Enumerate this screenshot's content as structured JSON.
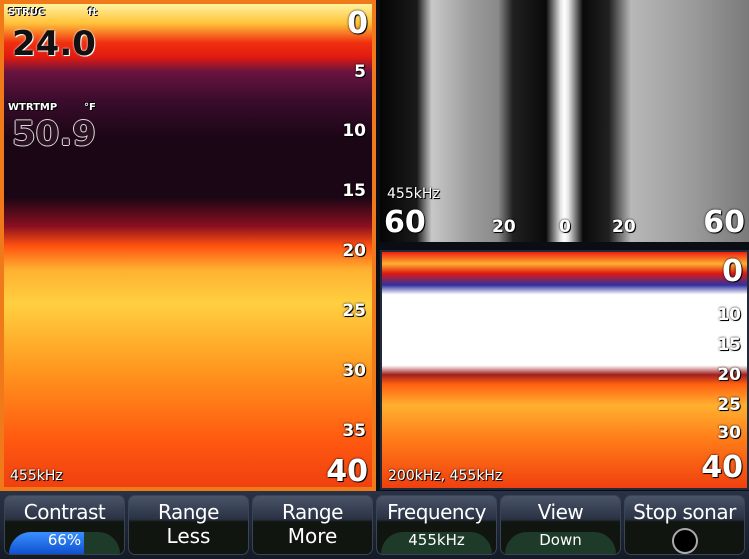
{
  "left_panel": {
    "struc_label": "STRUC",
    "struc_unit": "ft",
    "struc_value": "24.0",
    "temp_label": "WTRTMP",
    "temp_unit": "°F",
    "temp_value": "50.9",
    "depth_scale": [
      "0",
      "5",
      "10",
      "15",
      "20",
      "25",
      "30",
      "35",
      "40"
    ],
    "frequency": "455kHz"
  },
  "sidescan_panel": {
    "frequency": "455kHz",
    "range_left": "60",
    "mark_left": "20",
    "center": "0",
    "mark_right": "20",
    "range_right": "60"
  },
  "downscan_panel": {
    "depth_scale": [
      "0",
      "10",
      "15",
      "20",
      "25",
      "30",
      "40"
    ],
    "frequency": "200kHz, 455kHz"
  },
  "toolbar": {
    "contrast": {
      "label": "Contrast",
      "value": "66%",
      "level": 0.66
    },
    "range_less": {
      "label": "Range",
      "sub": "Less"
    },
    "range_more": {
      "label": "Range",
      "sub": "More"
    },
    "frequency": {
      "label": "Frequency",
      "value": "455kHz"
    },
    "view": {
      "label": "View",
      "value": "Down"
    },
    "stop_sonar": {
      "label": "Stop sonar"
    }
  },
  "colors": {
    "active_border": "#f07a1a",
    "contrast_fill": "#1e6ef0"
  }
}
